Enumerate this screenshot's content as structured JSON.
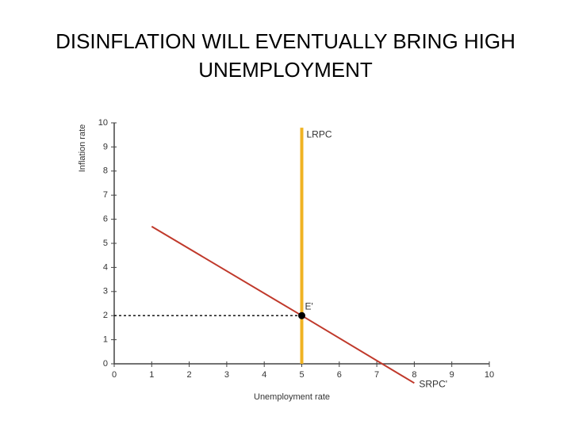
{
  "chart_data": {
    "type": "line",
    "title": "DISINFLATION WILL EVENTUALLY BRING HIGH UNEMPLOYMENT",
    "xlabel": "Unemployment rate",
    "ylabel": "Inflation rate",
    "xlim": [
      0,
      10
    ],
    "ylim": [
      0,
      10
    ],
    "xticks": [
      0,
      1,
      2,
      3,
      4,
      5,
      6,
      7,
      8,
      9,
      10
    ],
    "yticks": [
      0,
      1,
      2,
      3,
      4,
      5,
      6,
      7,
      8,
      9,
      10
    ],
    "series": [
      {
        "name": "LRPC",
        "color": "#f0b323",
        "x": [
          5,
          5
        ],
        "values": [
          0,
          9.8
        ]
      },
      {
        "name": "SRPC'",
        "color": "#c0392b",
        "x": [
          1,
          5,
          8
        ],
        "values": [
          5.7,
          2,
          -0.8
        ]
      },
      {
        "color": "#000000",
        "dashed": true,
        "x": [
          0,
          5
        ],
        "values": [
          2,
          2
        ]
      }
    ],
    "points": [
      {
        "label": "E'",
        "x": 5,
        "y": 2,
        "color": "#000000"
      }
    ]
  }
}
